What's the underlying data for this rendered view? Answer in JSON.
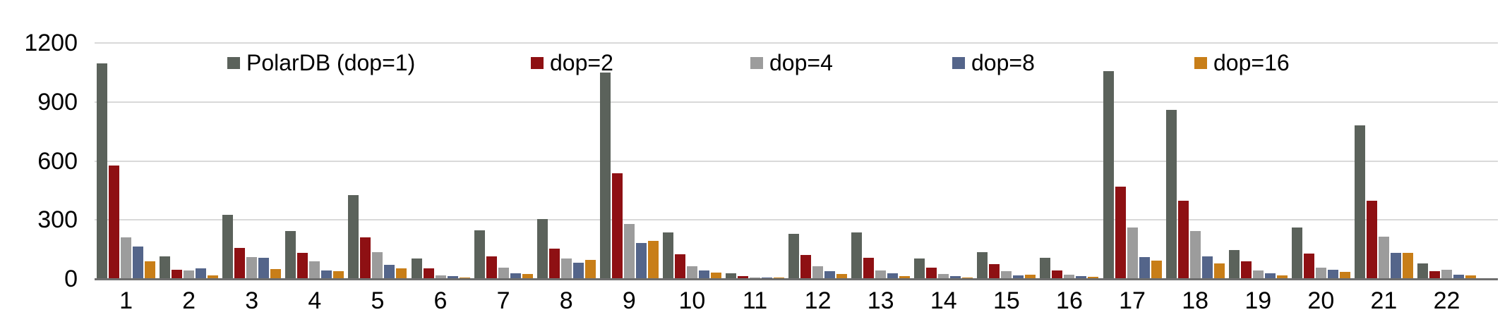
{
  "chart_data": {
    "type": "bar",
    "title": "",
    "xlabel": "",
    "ylabel": "",
    "categories": [
      "1",
      "2",
      "3",
      "4",
      "5",
      "6",
      "7",
      "8",
      "9",
      "10",
      "11",
      "12",
      "13",
      "14",
      "15",
      "16",
      "17",
      "18",
      "19",
      "20",
      "21",
      "22"
    ],
    "series": [
      {
        "name": "PolarDB (dop=1)",
        "color": "#5b625b",
        "values": [
          1095,
          115,
          325,
          242,
          428,
          104,
          246,
          303,
          1050,
          237,
          29,
          231,
          236,
          103,
          137,
          106,
          1056,
          859,
          147,
          262,
          781,
          78
        ]
      },
      {
        "name": "dop=2",
        "color": "#8e1013",
        "values": [
          575,
          48,
          158,
          134,
          212,
          54,
          115,
          154,
          537,
          125,
          15,
          122,
          108,
          58,
          74,
          42,
          469,
          398,
          91,
          130,
          397,
          39
        ]
      },
      {
        "name": "dop=4",
        "color": "#9c9c9c",
        "values": [
          210,
          42,
          110,
          90,
          137,
          17,
          58,
          104,
          279,
          63,
          5,
          66,
          43,
          24,
          40,
          20,
          262,
          243,
          44,
          58,
          215,
          46
        ]
      },
      {
        "name": "dop=8",
        "color": "#54658a",
        "values": [
          165,
          54,
          108,
          42,
          70,
          13,
          29,
          82,
          182,
          42,
          3,
          41,
          30,
          14,
          19,
          14,
          110,
          116,
          29,
          47,
          134,
          20
        ]
      },
      {
        "name": "dop=16",
        "color": "#c87e18",
        "values": [
          88,
          17,
          51,
          38,
          53,
          5,
          25,
          98,
          194,
          33,
          3,
          24,
          16,
          6,
          21,
          10,
          93,
          80,
          17,
          36,
          134,
          18
        ]
      }
    ],
    "ylim": [
      0,
      1200
    ],
    "yticks": [
      0,
      300,
      600,
      900,
      1200
    ],
    "grid": true,
    "legend_position": "top-inside-horizontal",
    "axis_colors": {
      "gridline": "#d9d9d9",
      "baseline": "#6e6e6e",
      "text": "#000000",
      "background": "#ffffff"
    }
  }
}
